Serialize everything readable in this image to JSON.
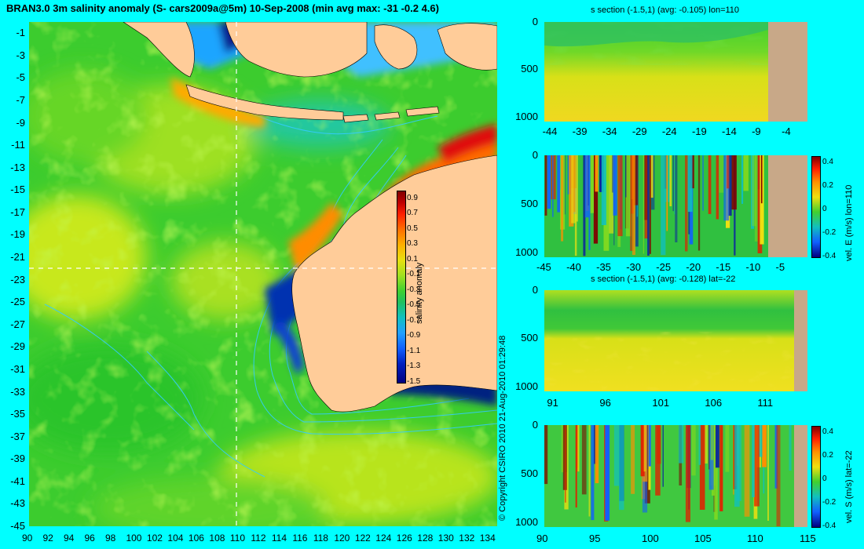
{
  "title": "BRAN3.0 3m salinity anomaly (S- cars2009a@5m) 10-Sep-2008 (min avg max: -31 -0.2 4.6)",
  "copyright": "© Copyright CSIRO 2010   21-Aug-2010 01:29:48",
  "colors": {
    "background": "#00ffff",
    "land": "#ffcc99",
    "section_land": "#c8a888",
    "contour": "#33ccff",
    "guide": "#ffffff"
  },
  "chart_data": [
    {
      "type": "heatmap",
      "name": "map",
      "title": "BRAN3.0 3m salinity anomaly (S- cars2009a@5m) 10-Sep-2008 (min avg max: -31 -0.2 4.6)",
      "x_ticks": [
        "90",
        "92",
        "94",
        "96",
        "98",
        "100",
        "102",
        "104",
        "106",
        "108",
        "110",
        "112",
        "114",
        "116",
        "118",
        "120",
        "122",
        "124",
        "126",
        "128",
        "130",
        "132",
        "134"
      ],
      "y_ticks": [
        "-1",
        "-3",
        "-5",
        "-7",
        "-9",
        "-11",
        "-13",
        "-15",
        "-17",
        "-19",
        "-21",
        "-23",
        "-25",
        "-27",
        "-29",
        "-31",
        "-33",
        "-35",
        "-37",
        "-39",
        "-41",
        "-43",
        "-45"
      ],
      "xlim": [
        90,
        135
      ],
      "ylim": [
        -45,
        0
      ],
      "guide_lon": 110,
      "guide_lat": -22,
      "colorbar": {
        "label": "salinity anomaly",
        "ticks": [
          "0.9",
          "0.7",
          "0.5",
          "0.3",
          "0.1",
          "-0.1",
          "-0.3",
          "-0.5",
          "-0.7",
          "-0.9",
          "-1.1",
          "-1.3",
          "-1.5"
        ],
        "range": [
          -1.5,
          1.0
        ]
      }
    },
    {
      "type": "heatmap",
      "name": "section-s-lon",
      "title": "s section (-1.5,1) (avg: -0.105) lon=110",
      "x_ticks": [
        "-44",
        "-39",
        "-34",
        "-29",
        "-24",
        "-19",
        "-14",
        "-9",
        "-4"
      ],
      "xlim": [
        -45,
        -1
      ],
      "y_ticks": [
        "0",
        "500",
        "1000"
      ],
      "ylim": [
        1050,
        0
      ]
    },
    {
      "type": "heatmap",
      "name": "section-vel-e",
      "title": "",
      "x_ticks": [
        "-45",
        "-40",
        "-35",
        "-30",
        "-25",
        "-20",
        "-15",
        "-10",
        "-5"
      ],
      "xlim": [
        -45,
        -1
      ],
      "y_ticks": [
        "0",
        "500",
        "1000"
      ],
      "ylim": [
        1050,
        0
      ],
      "colorbar": {
        "label": "vel. E (m/s) lon=110",
        "ticks": [
          "0.4",
          "0.2",
          "0",
          "-0.2",
          "-0.4"
        ],
        "range": [
          -0.4,
          0.45
        ]
      }
    },
    {
      "type": "heatmap",
      "name": "section-s-lat",
      "title": "s section (-1.5,1) (avg: -0.128) lat=-22",
      "x_ticks": [
        "91",
        "96",
        "101",
        "106",
        "111"
      ],
      "xlim": [
        90,
        115
      ],
      "y_ticks": [
        "0",
        "500",
        "1000"
      ],
      "ylim": [
        1050,
        0
      ]
    },
    {
      "type": "heatmap",
      "name": "section-vel-s",
      "title": "",
      "x_ticks": [
        "90",
        "95",
        "100",
        "105",
        "110",
        "115"
      ],
      "xlim": [
        90,
        115
      ],
      "y_ticks": [
        "0",
        "500",
        "1000"
      ],
      "ylim": [
        1050,
        0
      ],
      "colorbar": {
        "label": "vel. S (m/s) lat=-22",
        "ticks": [
          "0.4",
          "0.2",
          "0",
          "-0.2",
          "-0.4"
        ],
        "range": [
          -0.4,
          0.45
        ]
      }
    }
  ]
}
